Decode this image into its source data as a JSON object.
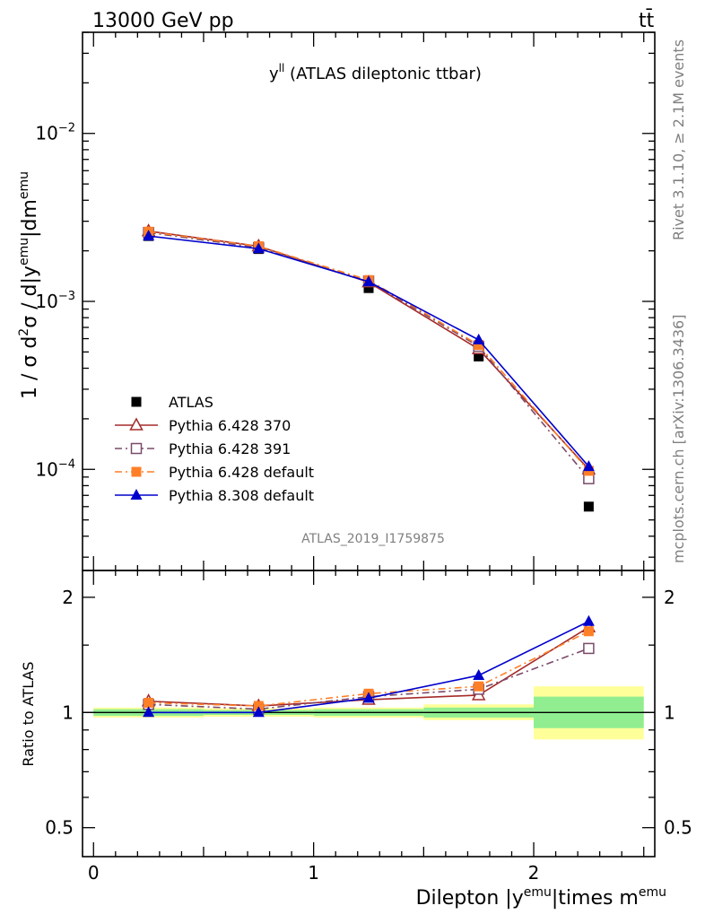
{
  "header": {
    "energy_label": "13000 GeV pp",
    "process_label": "tt̄"
  },
  "side_labels": {
    "rivet": "Rivet 3.1.10, ≥ 2.1M events",
    "mcplots": "mcplots.cern.ch [arXiv:1306.3436]"
  },
  "chart_data": [
    {
      "type": "line",
      "panel": "main",
      "title_main": "y",
      "title_sup": "ll",
      "title_rest": " (ATLAS dileptonic ttbar)",
      "analysis_id": "ATLAS_2019_I1759875",
      "ylabel_parts": [
        "1 / σ  d",
        "2",
        "σ / d|y",
        "emu",
        "|dm",
        "emu"
      ],
      "yscale": "log",
      "ylim": [
        2.5e-05,
        0.04
      ],
      "xlim": [
        -0.05,
        2.55
      ],
      "ytick_labels": [
        {
          "value": 0.01,
          "base": "10",
          "exp": "−2"
        },
        {
          "value": 0.001,
          "base": "10",
          "exp": "−3"
        },
        {
          "value": 0.0001,
          "base": "10",
          "exp": "−4"
        }
      ],
      "x": [
        0.25,
        0.75,
        1.25,
        1.75,
        2.25
      ],
      "series": [
        {
          "name": "ATLAS",
          "color": "#000000",
          "marker": "filled-square",
          "line": "none",
          "values": [
            0.00245,
            0.00205,
            0.0012,
            0.00047,
            6e-05
          ]
        },
        {
          "name": "Pythia 6.428 370",
          "color": "#a52a2a",
          "marker": "open-triangle",
          "line": "solid",
          "values": [
            0.00262,
            0.00213,
            0.0013,
            0.00052,
            0.0001
          ]
        },
        {
          "name": "Pythia 6.428 391",
          "color": "#7a4a6a",
          "marker": "open-square",
          "line": "dashdot",
          "values": [
            0.00257,
            0.00209,
            0.00132,
            0.00054,
            8.8e-05
          ]
        },
        {
          "name": "Pythia 6.428 default",
          "color": "#ff7f27",
          "marker": "filled-square",
          "line": "dashdot",
          "values": [
            0.0026,
            0.00213,
            0.00134,
            0.00055,
            9.8e-05
          ]
        },
        {
          "name": "Pythia 8.308 default",
          "color": "#0000cc",
          "marker": "filled-triangle",
          "line": "solid",
          "values": [
            0.00245,
            0.00206,
            0.00131,
            0.00059,
            0.000104
          ]
        }
      ]
    },
    {
      "type": "line",
      "panel": "ratio",
      "ylabel": "Ratio to ATLAS",
      "yscale": "log",
      "ylim": [
        0.42,
        2.35
      ],
      "xlim": [
        -0.05,
        2.55
      ],
      "ytick_labels": [
        "2",
        "1",
        "0.5"
      ],
      "xtick_labels": [
        "0",
        "1",
        "2"
      ],
      "xlabel_parts": [
        "Dilepton |y",
        "emu",
        "|times m",
        "emu"
      ],
      "x": [
        0.25,
        0.75,
        1.25,
        1.75,
        2.25
      ],
      "bin_edges": [
        0,
        0.5,
        1.0,
        1.5,
        2.0,
        2.5
      ],
      "band_inner": [
        [
          0.98,
          1.02
        ],
        [
          0.985,
          1.015
        ],
        [
          0.98,
          1.02
        ],
        [
          0.97,
          1.03
        ],
        [
          0.91,
          1.1
        ]
      ],
      "band_outer": [
        [
          0.97,
          1.03
        ],
        [
          0.975,
          1.025
        ],
        [
          0.97,
          1.03
        ],
        [
          0.955,
          1.05
        ],
        [
          0.85,
          1.17
        ]
      ],
      "band_colors": {
        "inner": "#90ee90",
        "outer": "#ffff99"
      },
      "series": [
        {
          "name": "Pythia 6.428 370",
          "values": [
            1.07,
            1.04,
            1.08,
            1.11,
            1.67
          ]
        },
        {
          "name": "Pythia 6.428 391",
          "values": [
            1.05,
            1.02,
            1.1,
            1.15,
            1.47
          ]
        },
        {
          "name": "Pythia 6.428 default",
          "values": [
            1.06,
            1.04,
            1.12,
            1.17,
            1.63
          ]
        },
        {
          "name": "Pythia 8.308 default",
          "values": [
            1.0,
            1.0,
            1.09,
            1.25,
            1.73
          ]
        }
      ]
    }
  ]
}
